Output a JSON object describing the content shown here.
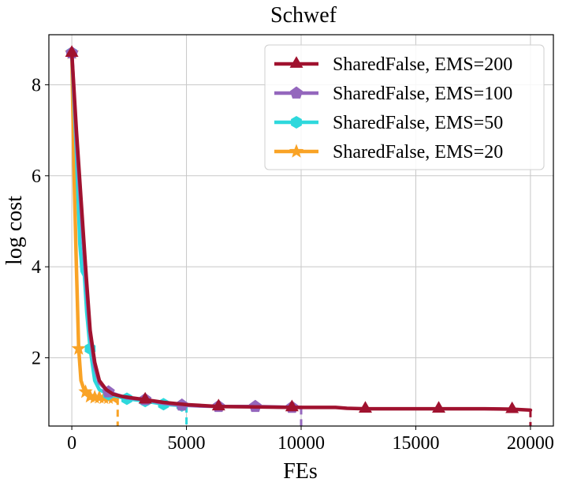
{
  "chart_data": {
    "type": "line",
    "title": "Schwef",
    "xlabel": "FEs",
    "ylabel": "log cost",
    "xlim": [
      -1000,
      21000
    ],
    "ylim": [
      0.5,
      9.1
    ],
    "xticks": [
      0,
      5000,
      10000,
      15000,
      20000
    ],
    "xtick_labels": [
      "0",
      "5000",
      "10000",
      "15000",
      "20000"
    ],
    "yticks": [
      2,
      4,
      6,
      8
    ],
    "ytick_labels": [
      "2",
      "4",
      "6",
      "8"
    ],
    "grid": true,
    "legend_position": "top-right",
    "series": [
      {
        "name": "SharedFalse, EMS=200",
        "color": "#a0122f",
        "marker": "triangle",
        "end_x": 20000,
        "x": [
          0,
          200,
          400,
          600,
          800,
          1000,
          1200,
          1500,
          1800,
          2200,
          2600,
          3200,
          4000,
          5000,
          6400,
          8000,
          9600,
          10000,
          11500,
          12000,
          12800,
          14000,
          16000,
          18000,
          19200,
          20000
        ],
        "y": [
          8.7,
          7.0,
          5.5,
          4.0,
          2.6,
          1.9,
          1.5,
          1.3,
          1.2,
          1.15,
          1.12,
          1.08,
          1.02,
          0.97,
          0.93,
          0.92,
          0.91,
          0.91,
          0.91,
          0.89,
          0.88,
          0.88,
          0.88,
          0.88,
          0.87,
          0.85
        ],
        "marker_x": [
          0,
          3200,
          6400,
          9600,
          12800,
          16000,
          19200
        ],
        "marker_y": [
          8.7,
          1.08,
          0.93,
          0.91,
          0.88,
          0.88,
          0.87
        ]
      },
      {
        "name": "SharedFalse, EMS=100",
        "color": "#9467bd",
        "marker": "pentagon",
        "end_x": 10000,
        "x": [
          0,
          200,
          400,
          600,
          800,
          1000,
          1200,
          1600,
          2000,
          2400,
          3200,
          4000,
          4800,
          5600,
          6400,
          7200,
          8000,
          8800,
          9600,
          10000
        ],
        "y": [
          8.7,
          6.8,
          5.3,
          3.8,
          2.5,
          1.8,
          1.45,
          1.25,
          1.18,
          1.12,
          1.08,
          1.0,
          0.96,
          0.94,
          0.93,
          0.93,
          0.93,
          0.92,
          0.91,
          0.91
        ],
        "marker_x": [
          0,
          1600,
          3200,
          4800,
          6400,
          8000,
          9600
        ],
        "marker_y": [
          8.7,
          1.25,
          1.08,
          0.96,
          0.93,
          0.93,
          0.91
        ]
      },
      {
        "name": "SharedFalse, EMS=50",
        "color": "#2ed8dc",
        "marker": "hexagon",
        "end_x": 5000,
        "x": [
          0,
          200,
          350,
          450,
          550,
          650,
          800,
          1000,
          1200,
          1600,
          2000,
          2400,
          3200,
          4000,
          4800,
          5000
        ],
        "y": [
          8.7,
          6.5,
          4.5,
          3.9,
          3.8,
          3.0,
          2.2,
          1.5,
          1.3,
          1.2,
          1.15,
          1.1,
          1.05,
          0.98,
          0.95,
          0.95
        ],
        "marker_x": [
          0,
          800,
          1600,
          2400,
          3200,
          4000,
          4800
        ],
        "marker_y": [
          8.7,
          2.2,
          1.2,
          1.1,
          1.05,
          0.98,
          0.95
        ]
      },
      {
        "name": "SharedFalse, EMS=20",
        "color": "#f9a326",
        "marker": "star",
        "end_x": 2000,
        "x": [
          0,
          100,
          200,
          300,
          400,
          500,
          600,
          800,
          1000,
          1200,
          1400,
          1600,
          1800,
          2000
        ],
        "y": [
          8.7,
          6.0,
          4.0,
          2.2,
          1.5,
          1.35,
          1.25,
          1.15,
          1.13,
          1.13,
          1.12,
          1.12,
          1.12,
          1.12
        ],
        "marker_x": [
          0,
          300,
          600,
          800,
          1000,
          1200,
          1400,
          1600,
          1800
        ],
        "marker_y": [
          8.7,
          2.2,
          1.25,
          1.15,
          1.13,
          1.13,
          1.12,
          1.12,
          1.12
        ]
      }
    ]
  }
}
